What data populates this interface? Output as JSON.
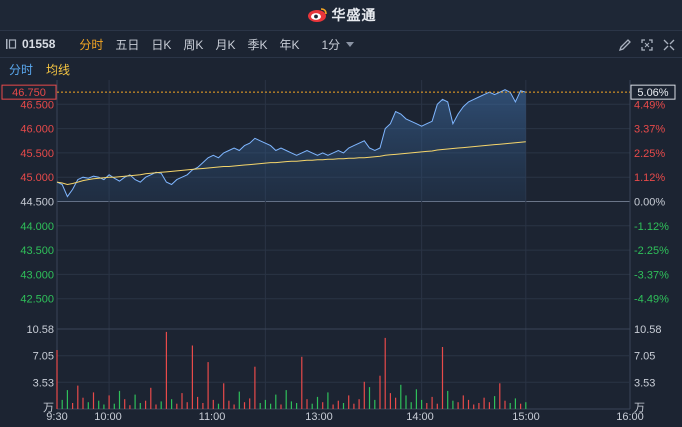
{
  "app": {
    "brand_name": "华盛通",
    "logo_icon": "weibo-style-eye-logo"
  },
  "toolbar": {
    "stock_code": "01558",
    "tabs": [
      {
        "label": "分时",
        "active": true
      },
      {
        "label": "五日",
        "active": false
      },
      {
        "label": "日K",
        "active": false
      },
      {
        "label": "周K",
        "active": false
      },
      {
        "label": "月K",
        "active": false
      },
      {
        "label": "季K",
        "active": false
      },
      {
        "label": "年K",
        "active": false
      }
    ],
    "interval": "1分",
    "icons": [
      "draw-pen-icon",
      "fullscreen-icon",
      "expand-icon"
    ]
  },
  "subtabs": {
    "minute": "分时",
    "avg": "均线"
  },
  "colors": {
    "up": "#e84a4a",
    "down": "#2fc05a",
    "price_line": "#7fb6ff",
    "avg_line": "#f5d56b",
    "accent": "#f5a623"
  },
  "price_panel": {
    "current_price_label": "46.750",
    "current_pct_label": "5.06%",
    "price_ticks": [
      "46.500",
      "46.000",
      "45.500",
      "45.000",
      "44.500",
      "44.000",
      "43.500",
      "43.000",
      "42.500"
    ],
    "pct_ticks": [
      "4.49%",
      "3.37%",
      "2.25%",
      "1.12%",
      "0.00%",
      "-1.12%",
      "-2.25%",
      "-3.37%",
      "-4.49%"
    ]
  },
  "volume_panel": {
    "ticks": [
      "10.58",
      "7.05",
      "3.53"
    ],
    "unit": "万"
  },
  "time_axis": [
    "9:30",
    "10:00",
    "11:00",
    "13:00",
    "14:00",
    "15:00",
    "16:00"
  ],
  "chart_data": {
    "type": "line",
    "prev_close": 44.5,
    "ylim": [
      42.0,
      47.0
    ],
    "volume_ylim": [
      0,
      10.58
    ],
    "volume_unit": "万",
    "session_minutes": 330,
    "elapsed_minutes": 270,
    "price": [
      44.9,
      44.85,
      44.6,
      44.75,
      44.95,
      45.0,
      44.98,
      45.02,
      45.0,
      44.95,
      45.05,
      44.98,
      44.92,
      45.0,
      45.05,
      44.95,
      44.9,
      45.0,
      45.05,
      45.1,
      45.08,
      44.9,
      44.85,
      44.95,
      45.0,
      45.05,
      45.15,
      45.2,
      45.3,
      45.4,
      45.45,
      45.4,
      45.5,
      45.55,
      45.6,
      45.55,
      45.65,
      45.7,
      45.8,
      45.75,
      45.7,
      45.65,
      45.55,
      45.6,
      45.55,
      45.5,
      45.45,
      45.5,
      45.55,
      45.5,
      45.45,
      45.5,
      45.45,
      45.5,
      45.55,
      45.5,
      45.6,
      45.65,
      45.7,
      45.75,
      45.6,
      45.55,
      45.6,
      46.0,
      46.1,
      46.35,
      46.3,
      46.2,
      46.15,
      46.1,
      46.05,
      46.1,
      46.15,
      46.5,
      46.6,
      46.55,
      46.1,
      46.3,
      46.45,
      46.55,
      46.6,
      46.65,
      46.7,
      46.75,
      46.7,
      46.75,
      46.8,
      46.75,
      46.55,
      46.78,
      46.75
    ],
    "avg": [
      44.9,
      44.88,
      44.85,
      44.87,
      44.9,
      44.93,
      44.95,
      44.97,
      44.98,
      44.99,
      45.0,
      45.0,
      45.01,
      45.02,
      45.03,
      45.04,
      45.05,
      45.07,
      45.08,
      45.09,
      45.1,
      45.11,
      45.12,
      45.13,
      45.14,
      45.15,
      45.16,
      45.17,
      45.18,
      45.19,
      45.2,
      45.21,
      45.22,
      45.22,
      45.23,
      45.24,
      45.25,
      45.26,
      45.27,
      45.28,
      45.29,
      45.3,
      45.3,
      45.31,
      45.32,
      45.33,
      45.33,
      45.34,
      45.35,
      45.35,
      45.36,
      45.36,
      45.37,
      45.37,
      45.38,
      45.38,
      45.39,
      45.39,
      45.4,
      45.4,
      45.41,
      45.42,
      45.43,
      45.45,
      45.46,
      45.47,
      45.48,
      45.49,
      45.5,
      45.51,
      45.52,
      45.53,
      45.54,
      45.56,
      45.57,
      45.58,
      45.59,
      45.6,
      45.61,
      45.62,
      45.63,
      45.64,
      45.65,
      45.66,
      45.67,
      45.68,
      45.69,
      45.7,
      45.71,
      45.72,
      45.73
    ],
    "volume": [
      7.8,
      1.2,
      2.5,
      0.8,
      3.1,
      1.5,
      0.9,
      2.2,
      1.1,
      0.6,
      1.8,
      0.7,
      2.4,
      1.3,
      0.5,
      1.9,
      0.8,
      1.1,
      2.8,
      0.6,
      1.0,
      10.2,
      1.3,
      0.7,
      2.1,
      0.9,
      8.4,
      1.6,
      0.8,
      6.2,
      1.2,
      0.7,
      3.4,
      1.1,
      0.6,
      2.3,
      0.9,
      1.4,
      5.6,
      0.8,
      1.2,
      0.7,
      1.9,
      0.6,
      2.5,
      1.0,
      0.8,
      6.9,
      1.3,
      0.7,
      1.6,
      0.9,
      2.2,
      0.6,
      1.1,
      0.8,
      1.8,
      0.7,
      1.3,
      3.6,
      2.9,
      1.2,
      4.4,
      9.4,
      2.1,
      1.5,
      3.2,
      1.8,
      0.9,
      2.6,
      1.2,
      0.8,
      1.6,
      0.7,
      8.2,
      2.4,
      1.1,
      0.9,
      1.8,
      1.2,
      0.6,
      0.8,
      1.5,
      0.9,
      1.7,
      3.4,
      1.1,
      0.8,
      1.4,
      0.7,
      0.9
    ],
    "volume_up": [
      1,
      0,
      0,
      1,
      1,
      1,
      0,
      1,
      0,
      0,
      1,
      0,
      0,
      1,
      1,
      0,
      0,
      1,
      1,
      1,
      0,
      1,
      0,
      1,
      1,
      1,
      1,
      1,
      1,
      1,
      1,
      0,
      1,
      1,
      1,
      0,
      1,
      1,
      1,
      0,
      0,
      0,
      0,
      1,
      0,
      0,
      0,
      1,
      1,
      0,
      0,
      1,
      0,
      1,
      1,
      0,
      1,
      1,
      1,
      1,
      0,
      0,
      1,
      1,
      1,
      1,
      0,
      0,
      0,
      0,
      0,
      1,
      1,
      1,
      1,
      0,
      0,
      1,
      1,
      1,
      1,
      1,
      1,
      1,
      0,
      1,
      1,
      0,
      0,
      1,
      0
    ]
  }
}
